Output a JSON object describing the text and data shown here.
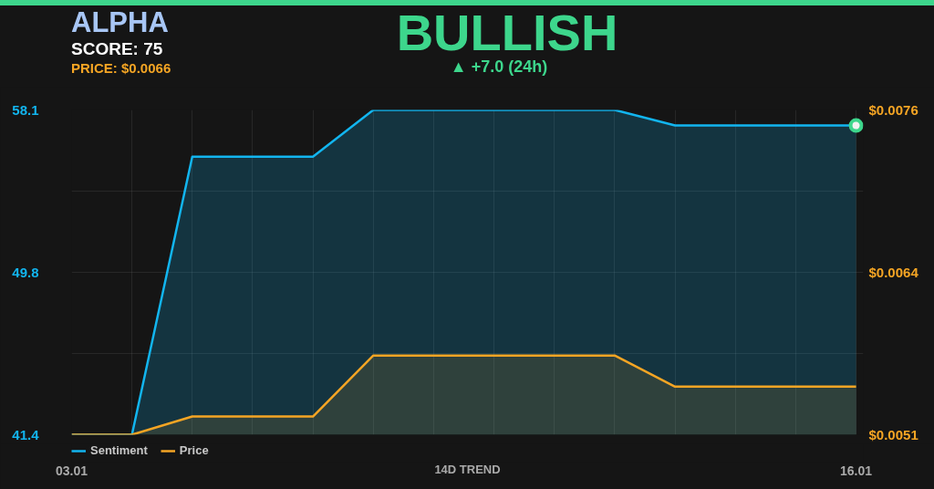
{
  "chart_data": {
    "type": "area",
    "title": "BULLISH",
    "subtitle": "▲ +7.0 (24h)",
    "xlabel": "14D TREND",
    "annotations": [
      "ALPHA",
      "SCORE: 75",
      "PRICE: $0.0066"
    ],
    "categories": [
      "03.01",
      null,
      null,
      null,
      null,
      null,
      null,
      null,
      null,
      null,
      null,
      null,
      null,
      "16.01"
    ],
    "series": [
      {
        "name": "Sentiment",
        "color": "#12b5ef",
        "values": [
          41.4,
          41.4,
          55.7,
          55.7,
          55.7,
          58.1,
          58.1,
          58.1,
          58.1,
          58.1,
          57.3,
          57.3,
          57.3,
          57.3
        ]
      },
      {
        "name": "Price",
        "color": "#f5a524",
        "axis": "y2",
        "values": [
          0.0051,
          0.0051,
          0.00524,
          0.00524,
          0.00524,
          0.00571,
          0.00571,
          0.00571,
          0.00571,
          0.00571,
          0.00547,
          0.00547,
          0.00547,
          0.00547
        ]
      },
      {
        "type": "scatter",
        "color": "#3dd68c",
        "marker": "circle",
        "values": [
          null,
          null,
          null,
          null,
          null,
          null,
          null,
          null,
          null,
          null,
          null,
          null,
          null,
          57.3
        ]
      }
    ],
    "ylim": [
      41.4,
      58.1
    ],
    "yticks": [
      41.4,
      {
        "value": 45.575,
        "label": null
      },
      {
        "value": 49.75,
        "label": "49.8"
      },
      {
        "value": 53.925,
        "label": null
      },
      58.1
    ],
    "y2lim": [
      0.0051,
      0.0076
    ],
    "y2ticks": [
      {
        "value": 0.0051,
        "label": "$0.0051"
      },
      {
        "value": 0.00635,
        "label": "$0.0064"
      },
      {
        "value": 0.0076,
        "label": "$0.0076"
      }
    ],
    "grid": true,
    "legend": "bottom left"
  }
}
